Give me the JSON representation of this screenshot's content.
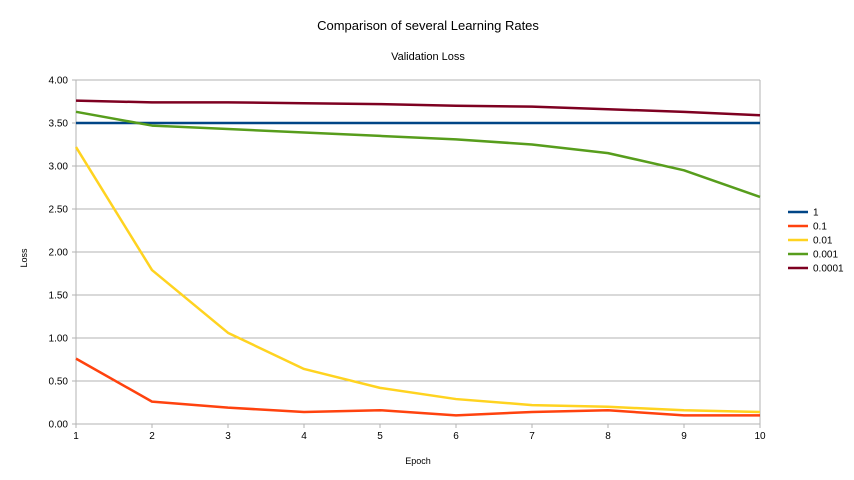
{
  "chart_data": {
    "type": "line",
    "title": "Comparison of several Learning Rates",
    "subtitle": "Validation Loss",
    "xlabel": "Epoch",
    "ylabel": "Loss",
    "x": [
      1,
      2,
      3,
      4,
      5,
      6,
      7,
      8,
      9,
      10
    ],
    "xlim": [
      1,
      10
    ],
    "ylim": [
      0,
      4
    ],
    "yticks": [
      "0.00",
      "0.50",
      "1.00",
      "1.50",
      "2.00",
      "2.50",
      "3.00",
      "3.50",
      "4.00"
    ],
    "xticks": [
      "1",
      "2",
      "3",
      "4",
      "5",
      "6",
      "7",
      "8",
      "9",
      "10"
    ],
    "grid": true,
    "legend_position": "right",
    "series": [
      {
        "name": "1",
        "color": "#004586",
        "values": [
          3.5,
          3.5,
          3.5,
          3.5,
          3.5,
          3.5,
          3.5,
          3.5,
          3.5,
          3.5
        ]
      },
      {
        "name": "0.1",
        "color": "#ff420e",
        "values": [
          0.76,
          0.26,
          0.19,
          0.14,
          0.16,
          0.1,
          0.14,
          0.16,
          0.1,
          0.1
        ]
      },
      {
        "name": "0.01",
        "color": "#ffd320",
        "values": [
          3.22,
          1.79,
          1.06,
          0.64,
          0.42,
          0.29,
          0.22,
          0.2,
          0.16,
          0.14
        ]
      },
      {
        "name": "0.001",
        "color": "#579d1c",
        "values": [
          3.63,
          3.47,
          3.43,
          3.39,
          3.35,
          3.31,
          3.25,
          3.15,
          2.95,
          2.64
        ]
      },
      {
        "name": "0.0001",
        "color": "#7e0021",
        "values": [
          3.76,
          3.74,
          3.74,
          3.73,
          3.72,
          3.7,
          3.69,
          3.66,
          3.63,
          3.59
        ]
      }
    ]
  }
}
